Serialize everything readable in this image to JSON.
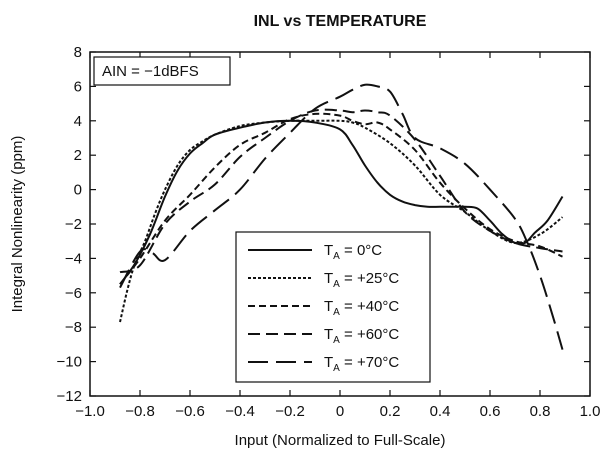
{
  "chart_data": {
    "type": "line",
    "title": "INL vs TEMPERATURE",
    "xlabel": "Input (Normalized to Full-Scale)",
    "ylabel": "Integral Nonlinearity (ppm)",
    "xlim": [
      -1.0,
      1.0
    ],
    "ylim": [
      -12,
      8
    ],
    "xticks": [
      -1.0,
      -0.8,
      -0.6,
      -0.4,
      -0.2,
      0,
      0.2,
      0.4,
      0.6,
      0.8,
      1.0
    ],
    "xtick_labels": [
      "−1.0",
      "−0.8",
      "−0.6",
      "−0.4",
      "−0.2",
      "0",
      "0.2",
      "0.4",
      "0.6",
      "0.8",
      "1.0"
    ],
    "yticks": [
      8,
      6,
      4,
      2,
      0,
      -2,
      -4,
      -6,
      -8,
      -10,
      -12
    ],
    "ytick_labels": [
      "8",
      "6",
      "4",
      "2",
      "0",
      "−2",
      "−4",
      "−6",
      "−8",
      "−10",
      "−12"
    ],
    "grid": false,
    "annotation": "AIN = −1dBFS",
    "legend_position": "bottom-center",
    "series": [
      {
        "name": "TA = 0°C",
        "legend_main": "T",
        "legend_sub": "A",
        "legend_rest": " = 0°C",
        "dash": "solid",
        "x": [
          -0.88,
          -0.82,
          -0.76,
          -0.7,
          -0.65,
          -0.6,
          -0.55,
          -0.5,
          -0.4,
          -0.3,
          -0.2,
          -0.1,
          0.0,
          0.05,
          0.1,
          0.15,
          0.2,
          0.25,
          0.3,
          0.35,
          0.4,
          0.45,
          0.5,
          0.55,
          0.6,
          0.65,
          0.7,
          0.74,
          0.78,
          0.83,
          0.89
        ],
        "y": [
          -5.5,
          -4.3,
          -2.6,
          -0.4,
          1.1,
          2.1,
          2.7,
          3.2,
          3.6,
          3.9,
          4.0,
          3.9,
          3.5,
          2.6,
          1.4,
          0.4,
          -0.3,
          -0.7,
          -0.9,
          -1.0,
          -1.0,
          -1.0,
          -1.0,
          -1.1,
          -1.8,
          -2.6,
          -3.1,
          -3.1,
          -2.5,
          -1.8,
          -0.4
        ]
      },
      {
        "name": "TA = +25°C",
        "legend_main": "T",
        "legend_sub": "A",
        "legend_rest": " = +25°C",
        "dash": "3,2",
        "x": [
          -0.88,
          -0.85,
          -0.82,
          -0.78,
          -0.74,
          -0.7,
          -0.65,
          -0.6,
          -0.55,
          -0.5,
          -0.4,
          -0.3,
          -0.2,
          -0.1,
          0.0,
          0.05,
          0.1,
          0.2,
          0.3,
          0.4,
          0.5,
          0.6,
          0.7,
          0.8,
          0.89
        ],
        "y": [
          -7.7,
          -5.8,
          -4.3,
          -3.0,
          -1.4,
          0.0,
          1.4,
          2.3,
          2.8,
          3.2,
          3.7,
          3.9,
          4.0,
          4.0,
          4.0,
          3.9,
          3.6,
          2.7,
          1.4,
          -0.3,
          -1.3,
          -2.4,
          -3.1,
          -2.6,
          -1.6
        ]
      },
      {
        "name": "TA = +40°C",
        "legend_main": "T",
        "legend_sub": "A",
        "legend_rest": " = +40°C",
        "dash": "7,4",
        "x": [
          -0.88,
          -0.8,
          -0.7,
          -0.6,
          -0.5,
          -0.4,
          -0.3,
          -0.2,
          -0.1,
          0.0,
          0.05,
          0.1,
          0.15,
          0.2,
          0.3,
          0.4,
          0.5,
          0.6,
          0.7,
          0.8,
          0.89
        ],
        "y": [
          -5.5,
          -4.0,
          -1.8,
          -0.3,
          1.3,
          2.6,
          3.3,
          4.1,
          4.4,
          4.3,
          4.0,
          3.8,
          3.9,
          3.5,
          2.3,
          0.4,
          -1.1,
          -2.3,
          -3.0,
          -3.3,
          -3.9
        ]
      },
      {
        "name": "TA = +60°C",
        "legend_main": "T",
        "legend_sub": "A",
        "legend_rest": " = +60°C",
        "dash": "12,6",
        "x": [
          -0.88,
          -0.8,
          -0.7,
          -0.6,
          -0.5,
          -0.4,
          -0.3,
          -0.2,
          -0.1,
          0.0,
          0.05,
          0.1,
          0.15,
          0.2,
          0.3,
          0.4,
          0.5,
          0.6,
          0.7,
          0.8,
          0.89
        ],
        "y": [
          -4.8,
          -4.4,
          -2.0,
          -0.7,
          0.3,
          1.9,
          3.0,
          4.0,
          4.6,
          4.6,
          4.5,
          4.6,
          4.5,
          4.3,
          2.9,
          0.8,
          -1.3,
          -2.4,
          -3.1,
          -3.4,
          -3.6
        ]
      },
      {
        "name": "TA = +70°C",
        "legend_main": "T",
        "legend_sub": "A",
        "legend_rest": " = +70°C",
        "dash": "20,8",
        "x": [
          -0.88,
          -0.8,
          -0.75,
          -0.7,
          -0.6,
          -0.5,
          -0.4,
          -0.3,
          -0.2,
          -0.1,
          0.0,
          0.05,
          0.1,
          0.15,
          0.2,
          0.25,
          0.3,
          0.4,
          0.5,
          0.6,
          0.7,
          0.75,
          0.8,
          0.85,
          0.89
        ],
        "y": [
          -5.7,
          -3.6,
          -3.7,
          -4.1,
          -2.4,
          -1.2,
          0.0,
          1.8,
          3.3,
          4.7,
          5.4,
          5.8,
          6.1,
          6.0,
          5.7,
          4.4,
          3.0,
          2.4,
          1.5,
          0.0,
          -1.7,
          -3.1,
          -5.0,
          -7.3,
          -9.3
        ]
      }
    ]
  }
}
